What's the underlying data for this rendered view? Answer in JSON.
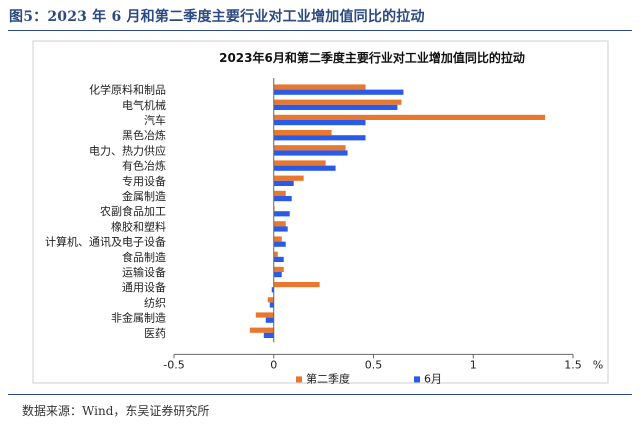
{
  "figure": {
    "title": "图5：2023 年 6 月和第二季度主要行业对工业增加值同比的拉动",
    "source": "数据来源：Wind，东吴证券研究所"
  },
  "colors": {
    "q2": "#E8782E",
    "june": "#2A5BE8",
    "frame": "#2b4a82"
  },
  "chart_data": {
    "type": "bar",
    "orientation": "horizontal",
    "title": "2023年6月和第二季度主要行业对工业增加值同比的拉动",
    "unit": "%",
    "categories": [
      "化学原料和制品",
      "电气机械",
      "汽车",
      "黑色冶炼",
      "电力、热力供应",
      "有色冶炼",
      "专用设备",
      "金属制造",
      "农副食品加工",
      "橡胶和塑料",
      "计算机、通讯及电子设备",
      "食品制造",
      "运输设备",
      "通用设备",
      "纺织",
      "非金属制造",
      "医药"
    ],
    "series": [
      {
        "name": "第二季度",
        "color": "#E8782E",
        "values": [
          0.46,
          0.64,
          1.36,
          0.29,
          0.36,
          0.26,
          0.15,
          0.06,
          0.0,
          0.06,
          0.04,
          0.02,
          0.05,
          0.23,
          -0.03,
          -0.09,
          -0.12
        ]
      },
      {
        "name": "6月",
        "color": "#2A5BE8",
        "values": [
          0.65,
          0.62,
          0.46,
          0.46,
          0.37,
          0.31,
          0.1,
          0.09,
          0.08,
          0.07,
          0.06,
          0.05,
          0.04,
          -0.01,
          -0.02,
          -0.04,
          -0.05
        ]
      }
    ],
    "xlim": [
      -0.5,
      1.5
    ],
    "xticks": [
      "-0.5",
      "0",
      "0.5",
      "1",
      "1.5"
    ],
    "legend_position": "bottom",
    "grid": false
  }
}
